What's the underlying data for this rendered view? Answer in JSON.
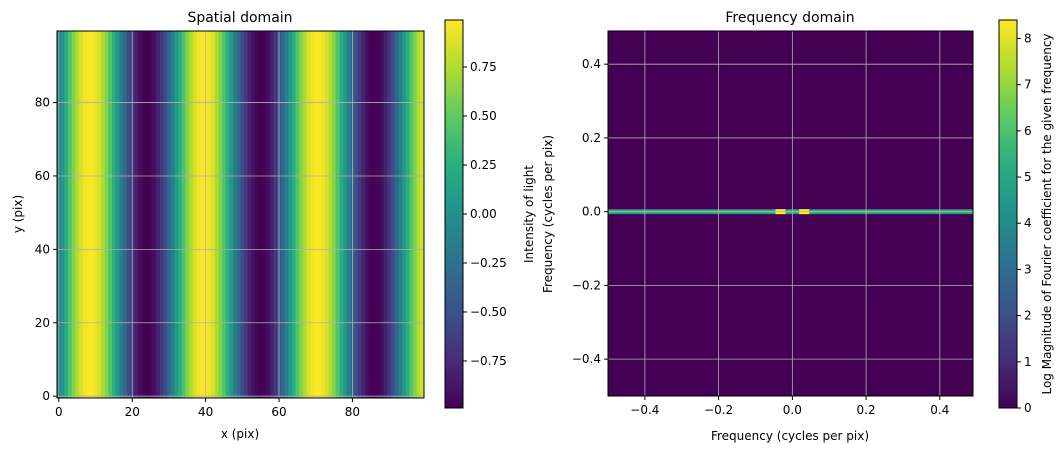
{
  "chart_data": [
    {
      "type": "heatmap",
      "title": "Spatial domain",
      "xlabel": "x (pix)",
      "ylabel": "y (pix)",
      "xlim": [
        -0.5,
        99.5
      ],
      "ylim": [
        -0.5,
        99.5
      ],
      "xticks": [
        0,
        20,
        40,
        60,
        80
      ],
      "yticks": [
        0,
        20,
        40,
        60,
        80
      ],
      "grid": true,
      "colormap": "viridis",
      "pattern": "vertical sinusoidal stripes, intensity = cos(2*pi*(x - 8.5)/31)",
      "period_pix": 31,
      "phase_peak_x": 8.5,
      "colorbar": {
        "label": "Intensity of light",
        "range": [
          -0.99,
          0.99
        ],
        "ticks": [
          "0.75",
          "0.50",
          "0.25",
          "0.00",
          "−0.25",
          "−0.50",
          "−0.75"
        ],
        "tick_values": [
          0.75,
          0.5,
          0.25,
          0.0,
          -0.25,
          -0.5,
          -0.75
        ]
      }
    },
    {
      "type": "heatmap",
      "title": "Frequency domain",
      "xlabel": "Frequency (cycles per pix)",
      "ylabel": "Frequency (cycles per pix)",
      "xlim": [
        -0.5,
        0.49
      ],
      "ylim": [
        -0.5,
        0.49
      ],
      "xticks": [
        "−0.4",
        "−0.2",
        "0.0",
        "0.2",
        "0.4"
      ],
      "xtick_values": [
        -0.4,
        -0.2,
        0.0,
        0.2,
        0.4
      ],
      "yticks": [
        "0.4",
        "0.2",
        "0.0",
        "−0.2",
        "−0.4"
      ],
      "ytick_values": [
        0.4,
        0.2,
        0.0,
        -0.2,
        -0.4
      ],
      "grid": true,
      "colormap": "viridis",
      "background_value": 0,
      "band": {
        "freq_y": 0.0,
        "value": 4.5
      },
      "peaks": [
        {
          "freq_x": -0.032,
          "value": 8.4
        },
        {
          "freq_x": 0.032,
          "value": 8.4
        }
      ],
      "colorbar": {
        "label": "Log Magnitude of Fourier coefficient for the given frequency",
        "range": [
          0,
          8.4
        ],
        "ticks": [
          "8",
          "7",
          "6",
          "5",
          "4",
          "3",
          "2",
          "1",
          "0"
        ],
        "tick_values": [
          8,
          7,
          6,
          5,
          4,
          3,
          2,
          1,
          0
        ]
      }
    }
  ]
}
